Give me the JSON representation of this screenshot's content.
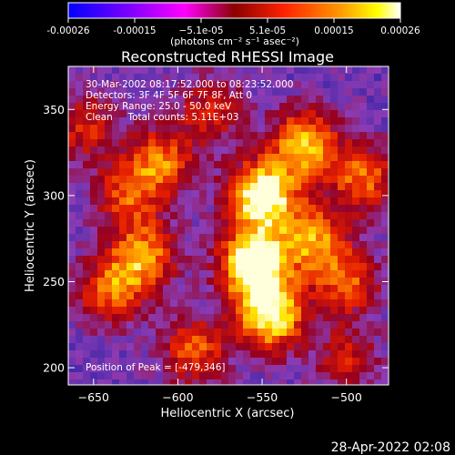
{
  "colorbar": {
    "ticks": [
      "-0.00026",
      "-0.00015",
      "−5.1e-05",
      "5.1e-05",
      "0.00015",
      "0.00026"
    ],
    "unit_label": "(photons cm⁻² s⁻¹ asec⁻²)",
    "colors": [
      "#0000ff",
      "#7a00ff",
      "#ff00ff",
      "#ff0000",
      "#ff8800",
      "#ffff00",
      "#ffffff"
    ]
  },
  "chart_data": {
    "type": "heatmap",
    "title": "Reconstructed RHESSI Image",
    "xlabel": "Heliocentric X (arcsec)",
    "ylabel": "Heliocentric Y (arcsec)",
    "xlim": [
      -665,
      -475
    ],
    "ylim": [
      190,
      375
    ],
    "xticks": [
      -650,
      -600,
      -550,
      -500
    ],
    "yticks": [
      200,
      250,
      300,
      350
    ],
    "info_lines": [
      "30-Mar-2002 08:17:52.000 to 08:23:52.000",
      "Detectors: 3F 4F 5F 6F 7F 8F, Att 0",
      "Energy Range: 25.0 - 50.0 keV",
      "Clean     Total counts: 5.11E+03"
    ],
    "peak_label": "Position of Peak = [-479,346]",
    "peak": [
      -479,
      346
    ],
    "hotspots": [
      {
        "x": -555,
        "y": 260,
        "level": 1.0
      },
      {
        "x": -550,
        "y": 300,
        "level": 0.95
      },
      {
        "x": -545,
        "y": 230,
        "level": 0.85
      },
      {
        "x": -525,
        "y": 330,
        "level": 0.7
      },
      {
        "x": -520,
        "y": 275,
        "level": 0.6
      },
      {
        "x": -640,
        "y": 245,
        "level": 0.55
      },
      {
        "x": -610,
        "y": 320,
        "level": 0.55
      },
      {
        "x": -590,
        "y": 210,
        "level": 0.5
      },
      {
        "x": -500,
        "y": 250,
        "level": 0.5
      },
      {
        "x": -490,
        "y": 310,
        "level": 0.55
      },
      {
        "x": -630,
        "y": 300,
        "level": 0.45
      },
      {
        "x": -655,
        "y": 340,
        "level": 0.4
      },
      {
        "x": -620,
        "y": 265,
        "level": 0.6
      },
      {
        "x": -580,
        "y": 350,
        "level": 0.4
      },
      {
        "x": -500,
        "y": 205,
        "level": 0.35
      }
    ]
  },
  "footer": {
    "date": "28-Apr-2022 02:08"
  }
}
